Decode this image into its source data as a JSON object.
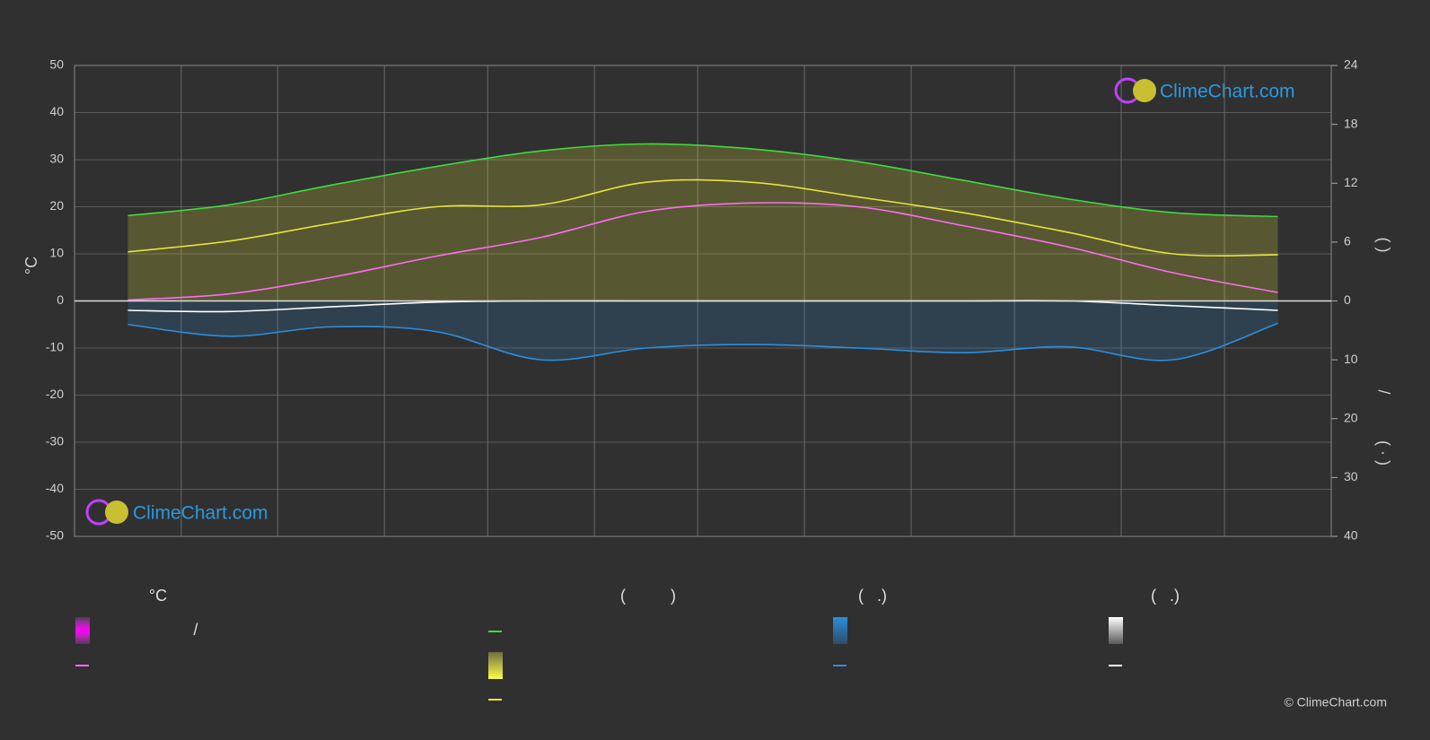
{
  "chart_data": {
    "type": "line",
    "categories": [
      null,
      null,
      null,
      null,
      null,
      null,
      null,
      null,
      null,
      null,
      null,
      null
    ],
    "day_of_year": [
      15.5,
      45,
      74.5,
      105,
      135.5,
      166,
      196.5,
      227.5,
      258,
      288.5,
      319,
      349.5
    ],
    "month_edges": [
      31,
      59,
      90,
      120,
      151,
      181,
      212,
      243,
      273,
      304,
      334
    ],
    "series": [
      {
        "color": "#3ddc3d",
        "axis": "y2",
        "values": [
          8.7,
          9.8,
          11.8,
          13.7,
          15.3,
          16.0,
          15.5,
          14.2,
          12.3,
          10.4,
          9.0,
          8.6
        ]
      },
      {
        "color": "#e4e43a",
        "axis": "y2",
        "values": [
          5.0,
          6.1,
          7.9,
          9.6,
          9.8,
          12.1,
          12.1,
          10.6,
          9.0,
          7.0,
          4.8,
          4.7
        ]
      },
      {
        "color": "#ff6cf0",
        "values": [
          0.2,
          1.5,
          5,
          9.5,
          13.5,
          19,
          20.8,
          20,
          16,
          11.5,
          6,
          1.8
        ]
      },
      {
        "color": "#2a8fe0",
        "axis": "y3",
        "values": [
          4,
          6,
          4.4,
          5.2,
          10,
          8,
          7.4,
          8,
          8.8,
          7.8,
          10,
          3.8
        ]
      },
      {
        "color": "#ffffff",
        "axis": "y3",
        "values": [
          1.6,
          1.8,
          1.0,
          0.2,
          0,
          0,
          0,
          0,
          0,
          0,
          0.8,
          1.6
        ]
      }
    ],
    "ylabel": "°C",
    "ylim": [
      -50,
      50
    ],
    "yticks": [
      -50,
      -40,
      -30,
      -20,
      -10,
      0,
      10,
      20,
      30,
      40,
      50
    ],
    "y2label": "( )",
    "y2lim": [
      0,
      24
    ],
    "y2ticks": [
      0,
      6,
      12,
      18,
      24
    ],
    "y3labels": [
      "/",
      "( · )"
    ],
    "y3lim": [
      0,
      40
    ],
    "y3ticks": [
      10,
      20,
      30,
      40
    ],
    "grid": true,
    "legend": {
      "headers": [
        "°C",
        "(          )",
        "(   .)",
        "(   .)"
      ],
      "items": [
        "/"
      ]
    },
    "logo": [
      "ClimeChart.com",
      "ClimeChart.com"
    ],
    "copyright": "© ClimeChart.com"
  }
}
